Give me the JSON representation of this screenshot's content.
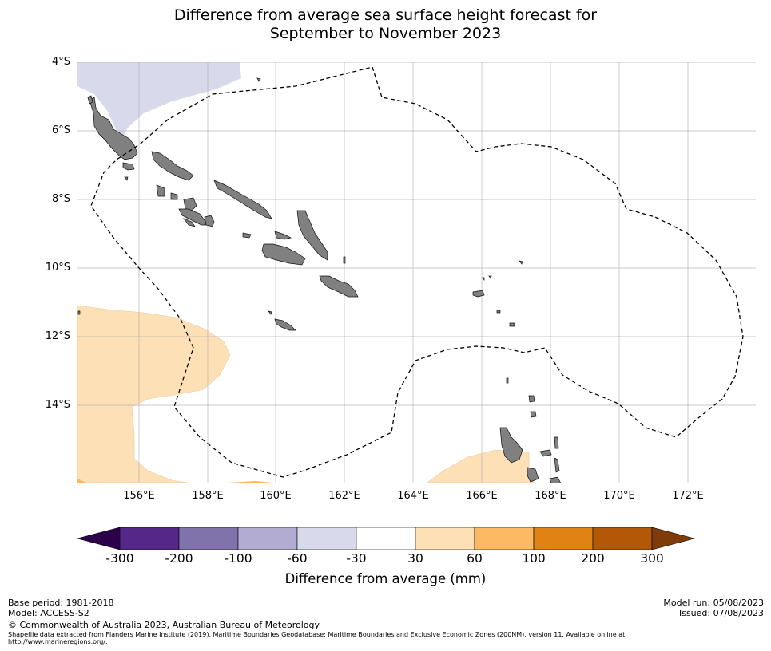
{
  "title_line1": "Difference from average sea surface height forecast for",
  "title_line2": "September to November 2023",
  "lat_labels": [
    "4°S",
    "6°S",
    "8°S",
    "10°S",
    "12°S",
    "14°S"
  ],
  "lon_labels": [
    "156°E",
    "158°E",
    "160°E",
    "162°E",
    "164°E",
    "166°E",
    "168°E",
    "170°E",
    "172°E"
  ],
  "colorbar": {
    "ticks": [
      "-300",
      "-200",
      "-100",
      "-60",
      "-30",
      "30",
      "60",
      "100",
      "200",
      "300"
    ],
    "colors": [
      "#2d004b",
      "#542788",
      "#8073ac",
      "#b2abd2",
      "#d8daeb",
      "#ffffff",
      "#fee0b6",
      "#fdb863",
      "#e08214",
      "#b35806",
      "#7f3b08"
    ],
    "label": "Difference from average (mm)"
  },
  "colors": {
    "land": "#808080",
    "negative_30_60": "#d8daeb",
    "positive_30_60": "#fee0b6",
    "positive_60_100": "#fdb863",
    "eez_line": "#000000",
    "grid": "#b0b0b0"
  },
  "footer": {
    "base_period": "Base period: 1981-2018",
    "model": "Model: ACCESS-S2",
    "model_run": "Model run: 05/08/2023",
    "issued": "Issued: 07/08/2023",
    "copyright": "© Commonwealth of Australia 2023, Australian Bureau of Meteorology",
    "shapefile_line1": "Shapefile data extracted from Flanders Marine Institute (2019), Maritime Boundaries Geodatabase: Maritime Boundaries and Exclusive Economic Zones (200NM), version 11. Available online at",
    "shapefile_line2": "http://www.marineregions.org/."
  }
}
